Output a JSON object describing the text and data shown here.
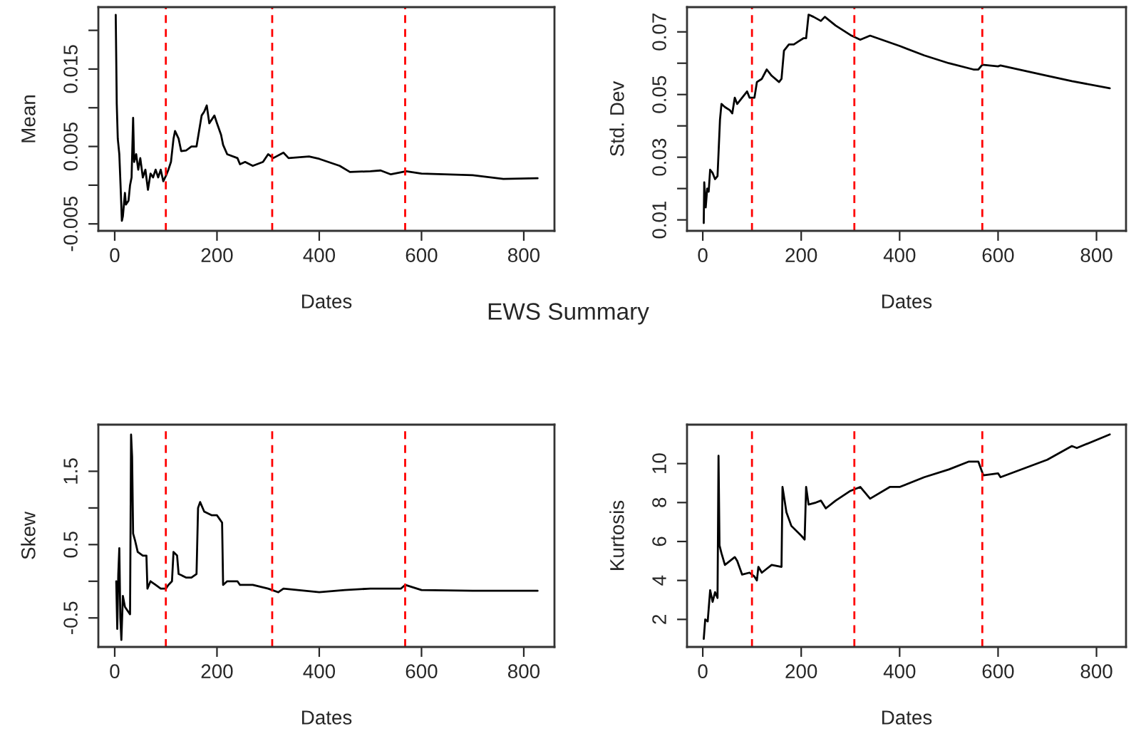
{
  "chart_data": [
    {
      "type": "line",
      "title": "EWS Summary",
      "xlabel": "Dates",
      "ylabel": "Mean",
      "xlim": [
        -32,
        860
      ],
      "xticks": [
        0,
        200,
        400,
        600,
        800
      ],
      "ylim": [
        -0.0059,
        0.023
      ],
      "yticks": [
        -0.005,
        {
          "value": 0,
          "label": null
        },
        0.005,
        {
          "value": 0.01,
          "label": null
        },
        0.015,
        {
          "value": 0.02,
          "label": null
        }
      ],
      "grid": false,
      "legend": false,
      "series": [
        {
          "color": "#000000",
          "x": [
            2,
            4,
            6,
            9,
            12,
            14,
            16,
            20,
            22,
            27,
            30,
            33,
            36,
            38,
            42,
            46,
            50,
            55,
            60,
            65,
            70,
            75,
            80,
            85,
            90,
            95,
            100,
            105,
            110,
            115,
            118,
            125,
            130,
            140,
            150,
            160,
            165,
            170,
            175,
            180,
            185,
            195,
            200,
            208,
            212,
            220,
            240,
            245,
            255,
            270,
            290,
            300,
            310,
            330,
            340,
            380,
            400,
            440,
            460,
            500,
            520,
            540,
            570,
            600,
            700,
            760,
            827
          ],
          "values": [
            0.022,
            0.0105,
            0.006,
            0.004,
            -0.001,
            -0.0046,
            -0.004,
            -0.001,
            -0.0025,
            -0.002,
            0.0,
            0.001,
            0.0087,
            0.003,
            0.004,
            0.002,
            0.0035,
            0.001,
            0.002,
            -0.0006,
            0.0015,
            0.001,
            0.002,
            0.001,
            0.002,
            0.0005,
            0.0012,
            0.002,
            0.003,
            0.006,
            0.007,
            0.006,
            0.0044,
            0.0045,
            0.005,
            0.005,
            0.007,
            0.009,
            0.0095,
            0.0103,
            0.008,
            0.009,
            0.008,
            0.0065,
            0.0052,
            0.004,
            0.0035,
            0.0027,
            0.003,
            0.0025,
            0.003,
            0.004,
            0.0035,
            0.0042,
            0.0035,
            0.0037,
            0.0034,
            0.0025,
            0.0017,
            0.0018,
            0.0019,
            0.0014,
            0.0018,
            0.0015,
            0.0013,
            0.0008,
            0.0009
          ]
        }
      ],
      "ref_lines": [
        {
          "axis": "x",
          "value": 100,
          "color": "#ff0000",
          "line_style": "dashed"
        },
        {
          "axis": "x",
          "value": 308,
          "color": "#ff0000",
          "line_style": "dashed"
        },
        {
          "axis": "x",
          "value": 568,
          "color": "#ff0000",
          "line_style": "dashed"
        }
      ]
    },
    {
      "type": "line",
      "xlabel": "Dates",
      "ylabel": "Std. Dev",
      "xlim": [
        -32,
        860
      ],
      "xticks": [
        0,
        200,
        400,
        600,
        800
      ],
      "ylim": [
        0.0065,
        0.0779
      ],
      "yticks": [
        0.01,
        {
          "value": 0.02,
          "label": null
        },
        0.03,
        {
          "value": 0.04,
          "label": null
        },
        0.05,
        {
          "value": 0.06,
          "label": null
        },
        0.07
      ],
      "grid": false,
      "legend": false,
      "series": [
        {
          "color": "#000000",
          "x": [
            2,
            3,
            6,
            9,
            12,
            15,
            20,
            25,
            30,
            35,
            38,
            45,
            55,
            60,
            65,
            70,
            80,
            90,
            95,
            105,
            110,
            120,
            130,
            140,
            155,
            160,
            165,
            175,
            185,
            195,
            205,
            210,
            215,
            225,
            240,
            248,
            270,
            300,
            320,
            340,
            400,
            450,
            500,
            550,
            560,
            568,
            600,
            605,
            700,
            750,
            827
          ],
          "values": [
            0.009,
            0.022,
            0.014,
            0.02,
            0.019,
            0.026,
            0.025,
            0.023,
            0.024,
            0.042,
            0.047,
            0.046,
            0.045,
            0.044,
            0.049,
            0.047,
            0.049,
            0.051,
            0.049,
            0.049,
            0.054,
            0.055,
            0.058,
            0.056,
            0.054,
            0.055,
            0.064,
            0.066,
            0.066,
            0.067,
            0.068,
            0.068,
            0.0755,
            0.0748,
            0.0735,
            0.0748,
            0.072,
            0.069,
            0.0675,
            0.0688,
            0.0655,
            0.0625,
            0.06,
            0.058,
            0.058,
            0.0595,
            0.059,
            0.0593,
            0.056,
            0.0543,
            0.052
          ]
        }
      ],
      "ref_lines": [
        {
          "axis": "x",
          "value": 100,
          "color": "#ff0000",
          "line_style": "dashed"
        },
        {
          "axis": "x",
          "value": 308,
          "color": "#ff0000",
          "line_style": "dashed"
        },
        {
          "axis": "x",
          "value": 568,
          "color": "#ff0000",
          "line_style": "dashed"
        }
      ]
    },
    {
      "type": "line",
      "xlabel": "Dates",
      "ylabel": "Skew",
      "xlim": [
        -32,
        860
      ],
      "xticks": [
        0,
        200,
        400,
        600,
        800
      ],
      "ylim": [
        -0.896,
        2.136
      ],
      "yticks": [
        -0.5,
        {
          "value": 0,
          "label": null
        },
        0.5,
        {
          "value": 1,
          "label": null
        },
        1.5
      ],
      "grid": false,
      "legend": false,
      "series": [
        {
          "color": "#000000",
          "x": [
            3,
            5,
            7,
            9,
            11,
            13,
            16,
            20,
            25,
            30,
            32,
            34,
            36,
            40,
            45,
            55,
            62,
            64,
            70,
            80,
            90,
            100,
            105,
            112,
            115,
            122,
            125,
            140,
            150,
            160,
            163,
            167,
            175,
            190,
            200,
            205,
            210,
            212,
            220,
            240,
            245,
            270,
            300,
            320,
            330,
            400,
            450,
            500,
            560,
            568,
            600,
            700,
            827
          ],
          "values": [
            0.0,
            -0.65,
            0.1,
            0.45,
            -0.5,
            -0.8,
            -0.2,
            -0.35,
            -0.4,
            -0.45,
            2.0,
            1.7,
            0.65,
            0.55,
            0.4,
            0.35,
            0.35,
            -0.1,
            0.0,
            -0.05,
            -0.1,
            -0.1,
            -0.05,
            0.0,
            0.4,
            0.35,
            0.1,
            0.05,
            0.05,
            0.1,
            1.0,
            1.08,
            0.95,
            0.9,
            0.9,
            0.85,
            0.8,
            -0.05,
            0.0,
            0.0,
            -0.05,
            -0.05,
            -0.1,
            -0.15,
            -0.1,
            -0.15,
            -0.12,
            -0.1,
            -0.1,
            -0.05,
            -0.12,
            -0.13,
            -0.13
          ]
        }
      ],
      "ref_lines": [
        {
          "axis": "x",
          "value": 100,
          "color": "#ff0000",
          "line_style": "dashed"
        },
        {
          "axis": "x",
          "value": 308,
          "color": "#ff0000",
          "line_style": "dashed"
        },
        {
          "axis": "x",
          "value": 568,
          "color": "#ff0000",
          "line_style": "dashed"
        }
      ]
    },
    {
      "type": "line",
      "xlabel": "Dates",
      "ylabel": "Kurtosis",
      "xlim": [
        -32,
        860
      ],
      "xticks": [
        0,
        200,
        400,
        600,
        800
      ],
      "ylim": [
        0.585,
        12.0
      ],
      "yticks": [
        2,
        4,
        6,
        8,
        10
      ],
      "grid": false,
      "legend": false,
      "series": [
        {
          "color": "#000000",
          "x": [
            2,
            5,
            10,
            15,
            20,
            25,
            30,
            32,
            34,
            38,
            45,
            55,
            65,
            70,
            80,
            95,
            105,
            110,
            113,
            120,
            130,
            140,
            160,
            162,
            170,
            180,
            200,
            207,
            210,
            215,
            230,
            240,
            250,
            270,
            300,
            320,
            340,
            380,
            400,
            450,
            500,
            540,
            560,
            570,
            600,
            605,
            700,
            750,
            760,
            827
          ],
          "values": [
            1.0,
            2.0,
            1.9,
            3.5,
            2.9,
            3.4,
            3.1,
            10.4,
            5.8,
            5.4,
            4.8,
            5.0,
            5.2,
            5.0,
            4.3,
            4.4,
            4.2,
            4.0,
            4.7,
            4.4,
            4.6,
            4.8,
            4.7,
            8.8,
            7.5,
            6.8,
            6.3,
            6.1,
            8.8,
            7.9,
            8.0,
            8.1,
            7.7,
            8.1,
            8.6,
            8.8,
            8.2,
            8.8,
            8.8,
            9.3,
            9.7,
            10.1,
            10.1,
            9.4,
            9.5,
            9.3,
            10.2,
            10.9,
            10.8,
            11.5
          ]
        }
      ],
      "ref_lines": [
        {
          "axis": "x",
          "value": 100,
          "color": "#ff0000",
          "line_style": "dashed"
        },
        {
          "axis": "x",
          "value": 308,
          "color": "#ff0000",
          "line_style": "dashed"
        },
        {
          "axis": "x",
          "value": 568,
          "color": "#ff0000",
          "line_style": "dashed"
        }
      ]
    }
  ]
}
